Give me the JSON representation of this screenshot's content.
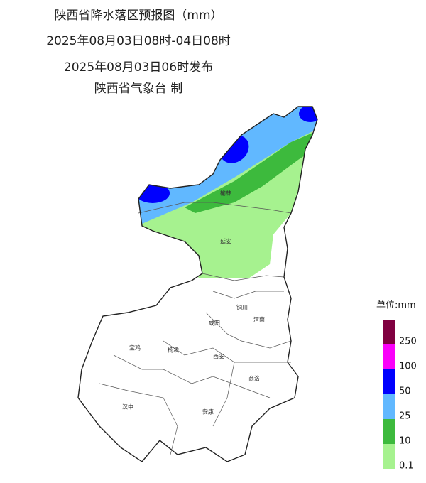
{
  "header": {
    "lines": [
      "陕西省降水落区预报图（mm）",
      "2025年08月03日08时-04日08时",
      "2025年08月03日06时发布",
      "陕西省气象台 制"
    ]
  },
  "cities": [
    "榆林",
    "延安",
    "铜川",
    "渭南",
    "咸阳",
    "宝鸡",
    "杨凌",
    "西安",
    "商洛",
    "汉中",
    "安康"
  ],
  "legend": {
    "title": "单位:mm",
    "items": [
      {
        "color": "#a6f28f",
        "label": "0.1"
      },
      {
        "color": "#3dba3d",
        "label": "10"
      },
      {
        "color": "#61b8ff",
        "label": "25"
      },
      {
        "color": "#0000fe",
        "label": "50"
      },
      {
        "color": "#fa00fa",
        "label": "100"
      },
      {
        "color": "#800040",
        "label": "250"
      }
    ]
  }
}
